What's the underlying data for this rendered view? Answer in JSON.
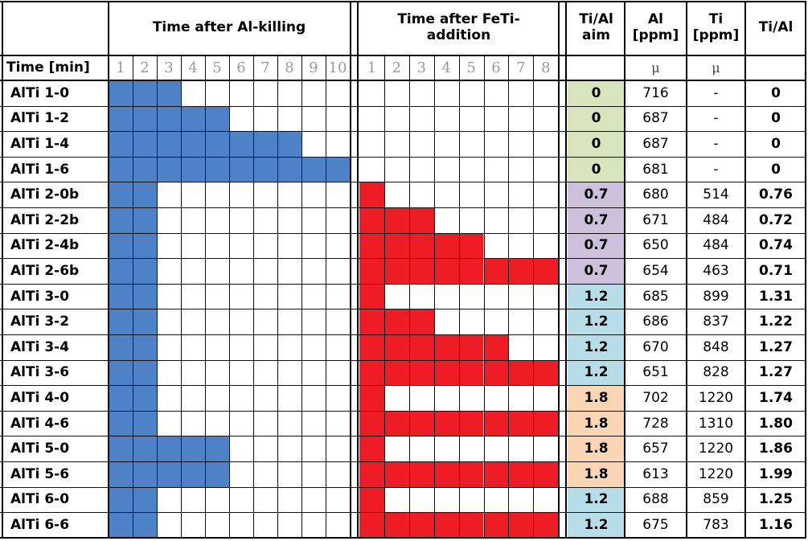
{
  "headers": {
    "al_killing": "Time after Al-killing",
    "feti_addition": "Time after FeTi-\naddition",
    "ti_al_aim": "Ti/Al\naim",
    "al_ppm": "Al\n[ppm]",
    "ti_ppm": "Ti\n[ppm]",
    "ti_al": "Ti/Al",
    "time_min": "Time [min]"
  },
  "al_ticks": [
    "1",
    "2",
    "3",
    "4",
    "5",
    "6",
    "7",
    "8",
    "9",
    "10"
  ],
  "feti_ticks": [
    "1",
    "2",
    "3",
    "4",
    "5",
    "6",
    "7",
    "8"
  ],
  "unit_al": "μ",
  "unit_ti": "μ",
  "colors": {
    "blue": "#4f81c7",
    "red": "#ee1c25",
    "aim_0": "#d8e4bc",
    "aim_07": "#ccc0da",
    "aim_12": "#b7dee8",
    "aim_18": "#fcd5b4"
  },
  "rows": [
    {
      "name": "AlTi 1-0",
      "blue": 3,
      "red": 0,
      "aim": "0",
      "al": "716",
      "ti": "-",
      "ratio": "0",
      "aim_color": "aim_0"
    },
    {
      "name": "AlTi 1-2",
      "blue": 5,
      "red": 0,
      "aim": "0",
      "al": "687",
      "ti": "-",
      "ratio": "0",
      "aim_color": "aim_0"
    },
    {
      "name": "AlTi 1-4",
      "blue": 8,
      "red": 0,
      "aim": "0",
      "al": "687",
      "ti": "-",
      "ratio": "0",
      "aim_color": "aim_0"
    },
    {
      "name": "AlTi 1-6",
      "blue": 10,
      "red": 0,
      "aim": "0",
      "al": "681",
      "ti": "-",
      "ratio": "0",
      "aim_color": "aim_0"
    },
    {
      "name": "AlTi 2-0b",
      "blue": 2,
      "red": 1,
      "aim": "0.7",
      "al": "680",
      "ti": "514",
      "ratio": "0.76",
      "aim_color": "aim_07"
    },
    {
      "name": "AlTi 2-2b",
      "blue": 2,
      "red": 3,
      "aim": "0.7",
      "al": "671",
      "ti": "484",
      "ratio": "0.72",
      "aim_color": "aim_07"
    },
    {
      "name": "AlTi 2-4b",
      "blue": 2,
      "red": 5,
      "aim": "0.7",
      "al": "650",
      "ti": "484",
      "ratio": "0.74",
      "aim_color": "aim_07"
    },
    {
      "name": "AlTi 2-6b",
      "blue": 2,
      "red": 8,
      "aim": "0.7",
      "al": "654",
      "ti": "463",
      "ratio": "0.71",
      "aim_color": "aim_07"
    },
    {
      "name": "AlTi 3-0",
      "blue": 2,
      "red": 1,
      "aim": "1.2",
      "al": "685",
      "ti": "899",
      "ratio": "1.31",
      "aim_color": "aim_12"
    },
    {
      "name": "AlTi 3-2",
      "blue": 2,
      "red": 3,
      "aim": "1.2",
      "al": "686",
      "ti": "837",
      "ratio": "1.22",
      "aim_color": "aim_12"
    },
    {
      "name": "AlTi 3-4",
      "blue": 2,
      "red": 6,
      "aim": "1.2",
      "al": "670",
      "ti": "848",
      "ratio": "1.27",
      "aim_color": "aim_12"
    },
    {
      "name": "AlTi 3-6",
      "blue": 2,
      "red": 8,
      "aim": "1.2",
      "al": "651",
      "ti": "828",
      "ratio": "1.27",
      "aim_color": "aim_12"
    },
    {
      "name": "AlTi 4-0",
      "blue": 2,
      "red": 1,
      "aim": "1.8",
      "al": "702",
      "ti": "1220",
      "ratio": "1.74",
      "aim_color": "aim_18"
    },
    {
      "name": "AlTi 4-6",
      "blue": 2,
      "red": 8,
      "aim": "1.8",
      "al": "728",
      "ti": "1310",
      "ratio": "1.80",
      "aim_color": "aim_18"
    },
    {
      "name": "AlTi 5-0",
      "blue": 5,
      "red": 1,
      "aim": "1.8",
      "al": "657",
      "ti": "1220",
      "ratio": "1.86",
      "aim_color": "aim_18"
    },
    {
      "name": "AlTi 5-6",
      "blue": 5,
      "red": 8,
      "aim": "1.8",
      "al": "613",
      "ti": "1220",
      "ratio": "1.99",
      "aim_color": "aim_18"
    },
    {
      "name": "AlTi 6-0",
      "blue": 2,
      "red": 1,
      "aim": "1.2",
      "al": "688",
      "ti": "859",
      "ratio": "1.25",
      "aim_color": "aim_12"
    },
    {
      "name": "AlTi 6-6",
      "blue": 2,
      "red": 8,
      "aim": "1.2",
      "al": "675",
      "ti": "783",
      "ratio": "1.16",
      "aim_color": "aim_12"
    }
  ]
}
